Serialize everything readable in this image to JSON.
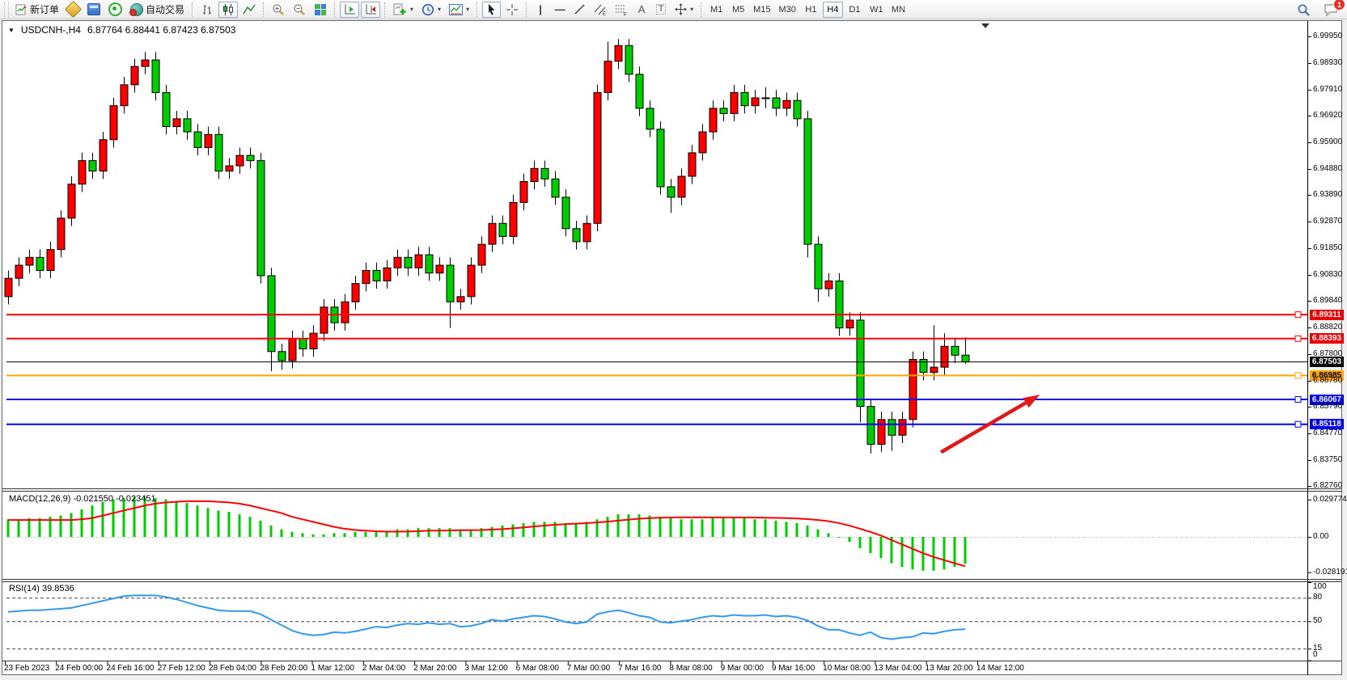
{
  "toolbar": {
    "new_order_label": "新订单",
    "autotrading_label": "自动交易",
    "timeframes": [
      "M1",
      "M5",
      "M15",
      "M30",
      "H1",
      "H4",
      "D1",
      "W1",
      "MN"
    ],
    "active_timeframe": "H4",
    "notification_badge": "1",
    "icons": [
      "new-order-icon",
      "metaeditor-icon",
      "market-watch-icon",
      "signal-icon",
      "autotrading-icon",
      "bar-chart-icon",
      "candlestick-chart-icon",
      "line-chart-icon",
      "zoom-in-icon",
      "zoom-out-icon",
      "tile-windows-icon",
      "auto-scroll-icon",
      "chart-shift-icon",
      "indicators-icon",
      "periods-icon",
      "templates-icon",
      "cursor-icon",
      "crosshair-icon",
      "vertical-line-icon",
      "horizontal-line-icon",
      "trendline-icon",
      "equidistant-channel-icon",
      "fibonacci-icon",
      "text-icon",
      "text-label-icon",
      "arrows-icon",
      "search-icon",
      "chat-icon"
    ]
  },
  "window": {
    "symbol_period": "USDCNH-,H4",
    "ohlc": "6.87764 6.88441 6.87423 6.87503",
    "dropdown_caret": "▼"
  },
  "indicators": {
    "macd_label": "MACD(12,26,9) -0.021550 -0.023451",
    "rsi_label": "RSI(14) 39.8536"
  },
  "price_axis": [
    "6.99950",
    "6.98930",
    "6.97910",
    "6.96920",
    "6.95900",
    "6.94880",
    "6.93890",
    "6.92870",
    "6.91850",
    "6.90830",
    "6.89840",
    "6.88820",
    "6.87800",
    "6.86780",
    "6.85790",
    "6.84770",
    "6.83750",
    "6.82760"
  ],
  "macd_axis": [
    "0.029774",
    "0.00",
    "-0.028191"
  ],
  "rsi_axis": [
    "100",
    "80",
    "50",
    "15",
    "0"
  ],
  "time_axis": [
    "23 Feb 2023",
    "24 Feb 00:00",
    "24 Feb 16:00",
    "27 Feb 12:00",
    "28 Feb 04:00",
    "28 Feb 20:00",
    "1 Mar 12:00",
    "2 Mar 04:00",
    "2 Mar 20:00",
    "3 Mar 12:00",
    "6 Mar 08:00",
    "7 Mar 00:00",
    "7 Mar 16:00",
    "8 Mar 08:00",
    "9 Mar 00:00",
    "9 Mar 16:00",
    "10 Mar 08:00",
    "13 Mar 04:00",
    "13 Mar 20:00",
    "14 Mar 12:00"
  ],
  "levels": [
    {
      "price": "6.89311",
      "line_color": "#ff0000",
      "label_bg": "#ee0000",
      "label_fg": "#ffffff",
      "width": 2,
      "handle": true
    },
    {
      "price": "6.88393",
      "line_color": "#ff0000",
      "label_bg": "#ee0000",
      "label_fg": "#ffffff",
      "width": 2,
      "handle": true
    },
    {
      "price": "6.87503",
      "line_color": "#000000",
      "label_bg": "#000000",
      "label_fg": "#ffffff",
      "width": 1,
      "handle": false
    },
    {
      "price": "6.86985",
      "line_color": "#ffa500",
      "label_bg": "#ffa500",
      "label_fg": "#000000",
      "width": 2,
      "handle": true
    },
    {
      "price": "6.86067",
      "line_color": "#0000ff",
      "label_bg": "#0000ee",
      "label_fg": "#ffffff",
      "width": 2,
      "handle": true
    },
    {
      "price": "6.85118",
      "line_color": "#0000ff",
      "label_bg": "#0000ee",
      "label_fg": "#ffffff",
      "width": 2,
      "handle": true
    }
  ],
  "chart_data": {
    "type": "candlestick",
    "symbol": "USDCNH",
    "period": "H4",
    "up_color": "#ff0000",
    "down_color": "#00cc00",
    "ylim": [
      6.8276,
      6.9995
    ],
    "candles": [
      [
        6.9,
        6.91,
        6.897,
        6.907
      ],
      [
        6.907,
        6.915,
        6.904,
        6.912
      ],
      [
        6.912,
        6.918,
        6.909,
        6.915
      ],
      [
        6.915,
        6.918,
        6.907,
        6.91
      ],
      [
        6.91,
        6.921,
        6.907,
        6.918
      ],
      [
        6.918,
        6.933,
        6.915,
        6.93
      ],
      [
        6.93,
        6.946,
        6.927,
        6.943
      ],
      [
        6.943,
        6.955,
        6.94,
        6.952
      ],
      [
        6.952,
        6.955,
        6.945,
        6.948
      ],
      [
        6.948,
        6.963,
        6.945,
        6.96
      ],
      [
        6.96,
        6.976,
        6.957,
        6.973
      ],
      [
        6.973,
        6.984,
        6.97,
        6.981
      ],
      [
        6.981,
        6.991,
        6.978,
        6.988
      ],
      [
        6.988,
        6.9935,
        6.985,
        6.9905
      ],
      [
        6.9905,
        6.9935,
        6.975,
        6.978
      ],
      [
        6.978,
        6.981,
        6.962,
        6.965
      ],
      [
        6.965,
        6.971,
        6.962,
        6.968
      ],
      [
        6.968,
        6.971,
        6.96,
        6.963
      ],
      [
        6.963,
        6.966,
        6.954,
        6.957
      ],
      [
        6.957,
        6.965,
        6.954,
        6.962
      ],
      [
        6.962,
        6.965,
        6.945,
        6.948
      ],
      [
        6.948,
        6.953,
        6.945,
        6.95
      ],
      [
        6.95,
        6.957,
        6.947,
        6.954
      ],
      [
        6.954,
        6.957,
        6.949,
        6.952
      ],
      [
        6.952,
        6.955,
        6.905,
        6.908
      ],
      [
        6.908,
        6.911,
        6.8715,
        6.879
      ],
      [
        6.879,
        6.882,
        6.872,
        6.8755
      ],
      [
        6.8755,
        6.887,
        6.8725,
        6.884
      ],
      [
        6.884,
        6.887,
        6.877,
        6.88
      ],
      [
        6.88,
        6.889,
        6.877,
        6.886
      ],
      [
        6.886,
        6.899,
        6.883,
        6.896
      ],
      [
        6.896,
        6.899,
        6.887,
        6.89
      ],
      [
        6.89,
        6.901,
        6.887,
        6.898
      ],
      [
        6.898,
        6.908,
        6.895,
        6.905
      ],
      [
        6.905,
        6.913,
        6.902,
        6.91
      ],
      [
        6.91,
        6.913,
        6.903,
        6.906
      ],
      [
        6.906,
        6.914,
        6.903,
        6.911
      ],
      [
        6.911,
        6.918,
        6.908,
        6.915
      ],
      [
        6.915,
        6.918,
        6.908,
        6.911
      ],
      [
        6.911,
        6.919,
        6.908,
        6.916
      ],
      [
        6.916,
        6.919,
        6.906,
        6.909
      ],
      [
        6.909,
        6.915,
        6.906,
        6.912
      ],
      [
        6.912,
        6.915,
        6.888,
        6.898
      ],
      [
        6.898,
        6.903,
        6.895,
        6.9
      ],
      [
        6.9,
        6.915,
        6.897,
        6.912
      ],
      [
        6.912,
        6.923,
        6.909,
        6.92
      ],
      [
        6.92,
        6.931,
        6.917,
        6.928
      ],
      [
        6.928,
        6.931,
        6.92,
        6.923
      ],
      [
        6.923,
        6.939,
        6.92,
        6.936
      ],
      [
        6.936,
        6.947,
        6.933,
        6.944
      ],
      [
        6.944,
        6.952,
        6.941,
        6.949
      ],
      [
        6.949,
        6.952,
        6.942,
        6.945
      ],
      [
        6.945,
        6.948,
        6.935,
        6.938
      ],
      [
        6.938,
        6.941,
        6.923,
        6.926
      ],
      [
        6.926,
        6.929,
        6.918,
        6.921
      ],
      [
        6.921,
        6.931,
        6.918,
        6.928
      ],
      [
        6.928,
        6.981,
        6.925,
        6.978
      ],
      [
        6.978,
        6.9975,
        6.975,
        6.99
      ],
      [
        6.99,
        6.9985,
        6.987,
        6.996
      ],
      [
        6.996,
        6.9985,
        6.982,
        6.985
      ],
      [
        6.985,
        6.988,
        6.969,
        6.972
      ],
      [
        6.972,
        6.975,
        6.961,
        6.964
      ],
      [
        6.964,
        6.967,
        6.939,
        6.942
      ],
      [
        6.942,
        6.945,
        6.932,
        6.938
      ],
      [
        6.938,
        6.949,
        6.935,
        6.946
      ],
      [
        6.946,
        6.958,
        6.943,
        6.955
      ],
      [
        6.955,
        6.966,
        6.952,
        6.963
      ],
      [
        6.963,
        6.975,
        6.96,
        6.972
      ],
      [
        6.972,
        6.975,
        6.967,
        6.97
      ],
      [
        6.97,
        6.981,
        6.967,
        6.978
      ],
      [
        6.978,
        6.981,
        6.97,
        6.973
      ],
      [
        6.973,
        6.979,
        6.97,
        6.976
      ],
      [
        6.976,
        6.98,
        6.972,
        6.976
      ],
      [
        6.976,
        6.979,
        6.969,
        6.972
      ],
      [
        6.972,
        6.978,
        6.969,
        6.975
      ],
      [
        6.975,
        6.978,
        6.965,
        6.968
      ],
      [
        6.968,
        6.971,
        6.915,
        6.92
      ],
      [
        6.92,
        6.923,
        6.898,
        6.903
      ],
      [
        6.903,
        6.909,
        6.9,
        6.906
      ],
      [
        6.906,
        6.909,
        6.885,
        6.888
      ],
      [
        6.888,
        6.894,
        6.885,
        6.891
      ],
      [
        6.891,
        6.894,
        6.852,
        6.858
      ],
      [
        6.858,
        6.861,
        6.84,
        6.8435
      ],
      [
        6.8435,
        6.856,
        6.8405,
        6.853
      ],
      [
        6.853,
        6.856,
        6.841,
        6.847
      ],
      [
        6.847,
        6.856,
        6.844,
        6.853
      ],
      [
        6.853,
        6.879,
        6.85,
        6.876
      ],
      [
        6.876,
        6.879,
        6.868,
        6.871
      ],
      [
        6.871,
        6.889,
        6.868,
        6.873
      ],
      [
        6.873,
        6.886,
        6.87,
        6.881
      ],
      [
        6.881,
        6.884,
        6.8746,
        6.8776
      ],
      [
        6.87764,
        6.88441,
        6.87423,
        6.87503
      ]
    ],
    "macd": {
      "histogram_color": "#00cc00",
      "signal_color": "#ff0000",
      "ylim": [
        -0.028191,
        0.029774
      ],
      "histogram": [
        0.014,
        0.014,
        0.015,
        0.015,
        0.016,
        0.017,
        0.019,
        0.022,
        0.025,
        0.028,
        0.03,
        0.031,
        0.032,
        0.032,
        0.031,
        0.03,
        0.028,
        0.027,
        0.025,
        0.023,
        0.021,
        0.02,
        0.018,
        0.016,
        0.013,
        0.009,
        0.006,
        0.004,
        0.003,
        0.002,
        0.002,
        0.003,
        0.003,
        0.004,
        0.004,
        0.005,
        0.005,
        0.006,
        0.006,
        0.007,
        0.007,
        0.007,
        0.007,
        0.006,
        0.006,
        0.007,
        0.008,
        0.009,
        0.01,
        0.011,
        0.012,
        0.012,
        0.012,
        0.011,
        0.011,
        0.012,
        0.014,
        0.016,
        0.018,
        0.018,
        0.018,
        0.017,
        0.016,
        0.015,
        0.014,
        0.014,
        0.014,
        0.015,
        0.015,
        0.015,
        0.015,
        0.014,
        0.014,
        0.013,
        0.012,
        0.011,
        0.009,
        0.006,
        0.003,
        0.0,
        -0.004,
        -0.009,
        -0.013,
        -0.017,
        -0.021,
        -0.024,
        -0.026,
        -0.027,
        -0.027,
        -0.026,
        -0.024,
        -0.02155
      ],
      "signal": [
        0.0135,
        0.0135,
        0.0135,
        0.0135,
        0.0135,
        0.0135,
        0.0135,
        0.014,
        0.015,
        0.017,
        0.019,
        0.021,
        0.023,
        0.025,
        0.0265,
        0.0275,
        0.028,
        0.0285,
        0.0285,
        0.0285,
        0.028,
        0.0275,
        0.0265,
        0.025,
        0.023,
        0.021,
        0.019,
        0.016,
        0.014,
        0.012,
        0.01,
        0.008,
        0.0065,
        0.0055,
        0.005,
        0.0045,
        0.0042,
        0.0042,
        0.0043,
        0.0045,
        0.005,
        0.005,
        0.0052,
        0.0053,
        0.0054,
        0.0055,
        0.0058,
        0.0062,
        0.0068,
        0.0075,
        0.0083,
        0.009,
        0.0097,
        0.0102,
        0.0106,
        0.011,
        0.0115,
        0.0122,
        0.013,
        0.0138,
        0.0145,
        0.015,
        0.0153,
        0.0155,
        0.0156,
        0.0156,
        0.0156,
        0.0156,
        0.0155,
        0.0155,
        0.0155,
        0.0154,
        0.0153,
        0.0152,
        0.015,
        0.0147,
        0.0142,
        0.0135,
        0.0125,
        0.011,
        0.009,
        0.0065,
        0.004,
        0.001,
        -0.0025,
        -0.006,
        -0.0095,
        -0.013,
        -0.016,
        -0.0185,
        -0.021,
        -0.023451
      ]
    },
    "rsi": {
      "color": "#3399ee",
      "ylim": [
        0,
        100
      ],
      "levels": [
        80,
        50,
        15
      ],
      "values": [
        62,
        63,
        64,
        64,
        65,
        66,
        67,
        70,
        73,
        76,
        79,
        82,
        83,
        83,
        83,
        81,
        78,
        74,
        70,
        67,
        64,
        63,
        63,
        63,
        59,
        52,
        45,
        38,
        34,
        32,
        33,
        36,
        35,
        37,
        40,
        43,
        42,
        45,
        47,
        46,
        48,
        46,
        47,
        43,
        44,
        47,
        52,
        50,
        53,
        55,
        57,
        56,
        53,
        49,
        47,
        49,
        59,
        62,
        64,
        61,
        57,
        55,
        49,
        48,
        50,
        52,
        55,
        57,
        56,
        58,
        57,
        57,
        58,
        56,
        57,
        55,
        51,
        44,
        39,
        39,
        35,
        32,
        36,
        29,
        27,
        29,
        30,
        35,
        34,
        37,
        39,
        39.8536
      ]
    },
    "annotations": [
      {
        "type": "arrow",
        "color": "#e01818",
        "from": {
          "index": 88.7,
          "price": 6.8405
        },
        "to": {
          "index": 98.1,
          "price": 6.8625
        }
      }
    ]
  }
}
